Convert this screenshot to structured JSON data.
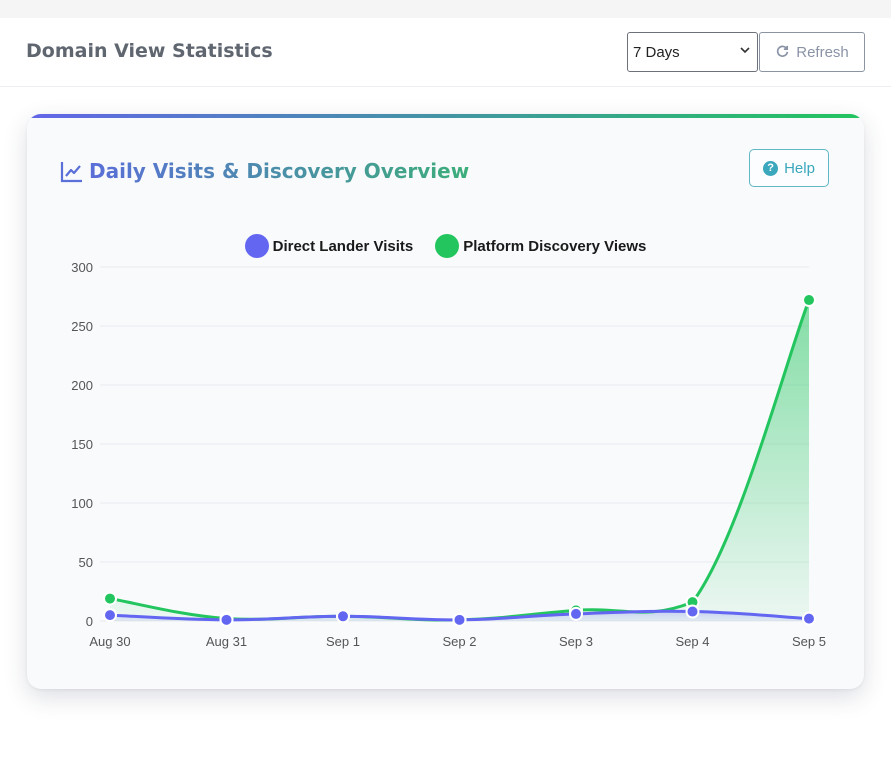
{
  "header": {
    "title": "Domain View Statistics",
    "range_selected": "7 Days",
    "refresh_label": "Refresh"
  },
  "card": {
    "title": "Daily Visits & Discovery Overview",
    "help_label": "Help"
  },
  "icons": {
    "chart": "line-chart-icon",
    "refresh": "refresh-icon",
    "help": "question-circle-icon",
    "dropdown": "chevron-down-icon"
  },
  "colors": {
    "direct": "#6366f1",
    "discovery": "#22c55e",
    "help": "#3aa7bd"
  },
  "chart_data": {
    "type": "line",
    "categories": [
      "Aug 30",
      "Aug 31",
      "Sep 1",
      "Sep 2",
      "Sep 3",
      "Sep 4",
      "Sep 5"
    ],
    "series": [
      {
        "name": "Direct Lander Visits",
        "values": [
          5,
          1,
          4,
          1,
          6,
          8,
          2
        ]
      },
      {
        "name": "Platform Discovery Views",
        "values": [
          19,
          2,
          4,
          1,
          9,
          16,
          272
        ]
      }
    ],
    "ylim": [
      0,
      300
    ],
    "yticks": [
      0,
      50,
      100,
      150,
      200,
      250,
      300
    ],
    "grid": true,
    "legend": "top-center",
    "fill": true
  }
}
